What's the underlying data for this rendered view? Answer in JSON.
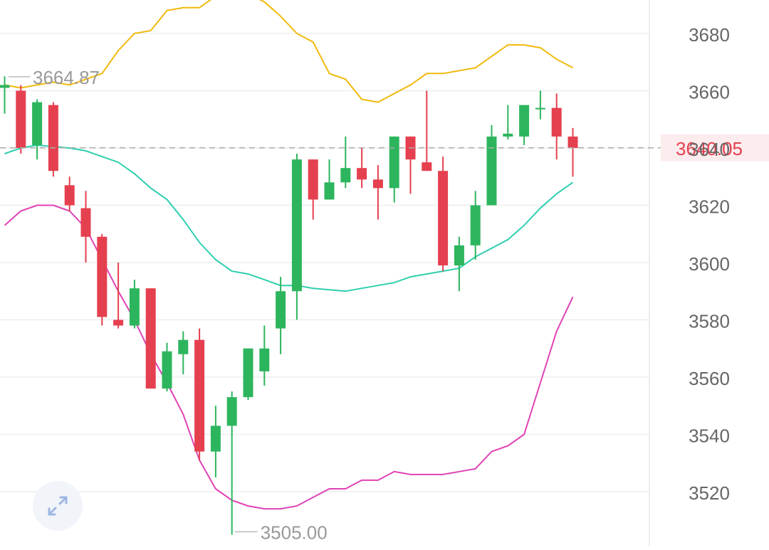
{
  "colors": {
    "up": "#2db55d",
    "down": "#e5404f",
    "upper_band": "#f0b90b",
    "middle_band": "#2ecfae",
    "lower_band": "#e042b5",
    "grid": "#eeeeee",
    "axis_text": "#666666",
    "marker_text": "#999999",
    "current_price_text": "#e5404f",
    "current_price_bg": "#fdecee",
    "dashed_line": "#aaaaaa"
  },
  "icons": {
    "expand": "expand-arrows-icon"
  },
  "chart_data": {
    "type": "candlestick",
    "y_axis_ticks": [
      "3520",
      "3540",
      "3560",
      "3580",
      "3600",
      "3620",
      "3640",
      "3660",
      "3680"
    ],
    "ylim": [
      3505,
      3695
    ],
    "grid": true,
    "axis_position": "right",
    "current_price": {
      "label": "3640.05",
      "value": 3640.05
    },
    "high_marker": {
      "label": "3664.87",
      "value": 3664.87
    },
    "low_marker": {
      "label": "3505.00",
      "value": 3505.0
    },
    "candles": [
      {
        "o": 3661,
        "h": 3665,
        "l": 3652,
        "c": 3662
      },
      {
        "o": 3660,
        "h": 3662,
        "l": 3638,
        "c": 3640
      },
      {
        "o": 3641,
        "h": 3657,
        "l": 3636,
        "c": 3656
      },
      {
        "o": 3655,
        "h": 3656,
        "l": 3630,
        "c": 3632
      },
      {
        "o": 3627,
        "h": 3630,
        "l": 3618,
        "c": 3620
      },
      {
        "o": 3619,
        "h": 3625,
        "l": 3600,
        "c": 3609
      },
      {
        "o": 3609,
        "h": 3610,
        "l": 3578,
        "c": 3581
      },
      {
        "o": 3580,
        "h": 3600,
        "l": 3577,
        "c": 3578
      },
      {
        "o": 3578,
        "h": 3594,
        "l": 3577,
        "c": 3591
      },
      {
        "o": 3591,
        "h": 3591,
        "l": 3556,
        "c": 3556
      },
      {
        "o": 3556,
        "h": 3572,
        "l": 3555,
        "c": 3569
      },
      {
        "o": 3568,
        "h": 3576,
        "l": 3561,
        "c": 3573
      },
      {
        "o": 3573,
        "h": 3577,
        "l": 3531,
        "c": 3534
      },
      {
        "o": 3534,
        "h": 3550,
        "l": 3525,
        "c": 3543
      },
      {
        "o": 3543,
        "h": 3555,
        "l": 3505,
        "c": 3553
      },
      {
        "o": 3553,
        "h": 3570,
        "l": 3552,
        "c": 3570
      },
      {
        "o": 3562,
        "h": 3578,
        "l": 3557,
        "c": 3570
      },
      {
        "o": 3577,
        "h": 3595,
        "l": 3568,
        "c": 3590
      },
      {
        "o": 3590,
        "h": 3638,
        "l": 3580,
        "c": 3636
      },
      {
        "o": 3636,
        "h": 3636,
        "l": 3615,
        "c": 3622
      },
      {
        "o": 3622,
        "h": 3636,
        "l": 3622,
        "c": 3628
      },
      {
        "o": 3628,
        "h": 3644,
        "l": 3626,
        "c": 3633
      },
      {
        "o": 3633,
        "h": 3640,
        "l": 3626,
        "c": 3629
      },
      {
        "o": 3629,
        "h": 3634,
        "l": 3615,
        "c": 3626
      },
      {
        "o": 3626,
        "h": 3644,
        "l": 3621,
        "c": 3644
      },
      {
        "o": 3644,
        "h": 3644,
        "l": 3624,
        "c": 3636
      },
      {
        "o": 3635,
        "h": 3660,
        "l": 3632,
        "c": 3632
      },
      {
        "o": 3632,
        "h": 3637,
        "l": 3597,
        "c": 3599
      },
      {
        "o": 3599,
        "h": 3609,
        "l": 3590,
        "c": 3606
      },
      {
        "o": 3606,
        "h": 3625,
        "l": 3601,
        "c": 3620
      },
      {
        "o": 3620,
        "h": 3648,
        "l": 3620,
        "c": 3644
      },
      {
        "o": 3644,
        "h": 3655,
        "l": 3643,
        "c": 3645
      },
      {
        "o": 3644,
        "h": 3655,
        "l": 3641,
        "c": 3655
      },
      {
        "o": 3654,
        "h": 3660,
        "l": 3650,
        "c": 3654
      },
      {
        "o": 3654,
        "h": 3659,
        "l": 3636,
        "c": 3644
      },
      {
        "o": 3644,
        "h": 3647,
        "l": 3630,
        "c": 3640
      }
    ],
    "upper_band": [
      3662,
      3661,
      3662,
      3663,
      3662,
      3664,
      3666,
      3674,
      3680,
      3681,
      3688,
      3689,
      3689,
      3693,
      3696,
      3694,
      3691,
      3686,
      3680,
      3677,
      3666,
      3664,
      3657,
      3656,
      3659,
      3662,
      3666,
      3666,
      3667,
      3668,
      3672,
      3676,
      3676,
      3675,
      3671,
      3668
    ],
    "middle_band": [
      3638,
      3640,
      3641,
      3640.5,
      3640,
      3639,
      3637,
      3635,
      3631,
      3626,
      3622,
      3615,
      3607,
      3601,
      3597,
      3596,
      3594,
      3592,
      3592,
      3591,
      3590.5,
      3590,
      3591,
      3592,
      3593,
      3595,
      3596,
      3597,
      3598,
      3602,
      3605,
      3608,
      3613,
      3619,
      3624,
      3628
    ],
    "lower_band": [
      3613,
      3618,
      3620,
      3620,
      3618,
      3612,
      3601,
      3590,
      3580,
      3568,
      3558,
      3547,
      3531,
      3521,
      3517,
      3515,
      3514,
      3514,
      3515,
      3518,
      3521,
      3521,
      3524,
      3524,
      3527,
      3526,
      3526,
      3526,
      3527,
      3528,
      3534,
      3536,
      3540,
      3558,
      3576,
      3588
    ]
  }
}
